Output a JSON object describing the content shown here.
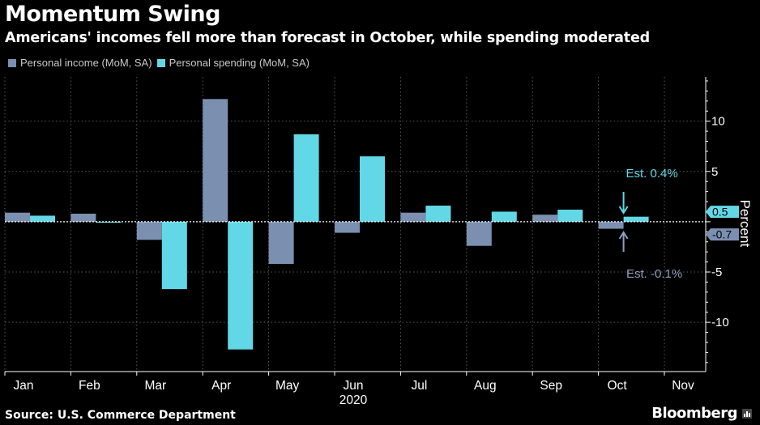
{
  "title": "Momentum Swing",
  "subtitle": "Americans' incomes fell more than forecast in October, while spending moderated",
  "source": "Source: U.S. Commerce Department",
  "brand": "Bloomberg",
  "chart_data": {
    "type": "bar",
    "categories": [
      "Jan",
      "Feb",
      "Mar",
      "Apr",
      "May",
      "Jun",
      "Jul",
      "Aug",
      "Sep",
      "Oct",
      "Nov"
    ],
    "x_year_label": "2020",
    "ylabel": "Percent",
    "ylim": [
      -14.9,
      14.4
    ],
    "yticks": [
      10,
      5,
      0,
      -5,
      -10
    ],
    "ytick_labels": [
      "10",
      "5",
      "",
      "-5",
      "-10"
    ],
    "grid": true,
    "legend": "top-left",
    "series": [
      {
        "name": "Personal income (MoM, SA)",
        "color": "#7b8fb0",
        "values": [
          0.9,
          0.8,
          -1.8,
          12.2,
          -4.2,
          -1.1,
          0.9,
          -2.4,
          0.7,
          -0.7,
          null
        ]
      },
      {
        "name": "Personal spending (MoM, SA)",
        "color": "#62d8e6",
        "values": [
          0.6,
          0.0,
          -6.7,
          -12.7,
          8.7,
          6.5,
          1.6,
          1.0,
          1.2,
          0.5,
          null
        ]
      }
    ],
    "end_labels": [
      {
        "series": 1,
        "text": "0.5",
        "color": "#62d8e6",
        "value": 0.5
      },
      {
        "series": 0,
        "text": "-0.7",
        "color": "#7b8fb0",
        "value": -0.7
      }
    ],
    "annotations": [
      {
        "text": "Est. 0.4%",
        "color": "#62d8e6",
        "category": "Oct",
        "arrow": "down"
      },
      {
        "text": "Est. -0.1%",
        "color": "#8ea0bd",
        "category": "Oct",
        "arrow": "up"
      }
    ]
  }
}
